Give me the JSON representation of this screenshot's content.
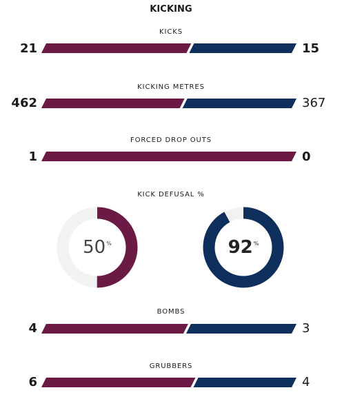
{
  "section_title": "KICKING",
  "colors": {
    "home": "#6b1a45",
    "away": "#0e2e5c",
    "track": "#f2f2f2"
  },
  "stats": [
    {
      "label": "KICKS",
      "home": 21,
      "away": 15
    },
    {
      "label": "KICKING METRES",
      "home": 462,
      "away": 367
    },
    {
      "label": "FORCED DROP OUTS",
      "home": 1,
      "away": 0
    }
  ],
  "defusal": {
    "label": "KICK DEFUSAL %",
    "home": 50,
    "away": 92,
    "unit": "%"
  },
  "stats_bottom": [
    {
      "label": "BOMBS",
      "home": 4,
      "away": 3
    },
    {
      "label": "GRUBBERS",
      "home": 6,
      "away": 4
    }
  ]
}
